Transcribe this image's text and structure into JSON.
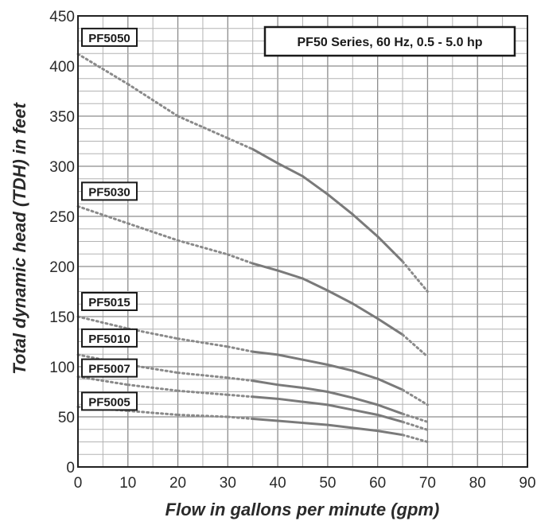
{
  "chart_data": {
    "type": "line",
    "title": "PF50 Series, 60 Hz, 0.5 - 5.0 hp",
    "xlabel": "Flow in gallons per minute (gpm)",
    "ylabel": "Total dynamic head (TDH) in feet",
    "xlim": [
      0,
      90
    ],
    "ylim": [
      0,
      450
    ],
    "xticks": [
      0,
      10,
      20,
      30,
      40,
      50,
      60,
      70,
      80,
      90
    ],
    "yticks": [
      0,
      50,
      100,
      150,
      200,
      250,
      300,
      350,
      400,
      450
    ],
    "grid": true,
    "legend": "top-right box",
    "line_color": "#7a7a7a",
    "series": [
      {
        "name": "PF5050",
        "points": [
          [
            0,
            412
          ],
          [
            10,
            382
          ],
          [
            20,
            350
          ],
          [
            30,
            328
          ],
          [
            35,
            317
          ],
          [
            40,
            303
          ],
          [
            45,
            290
          ],
          [
            50,
            272
          ],
          [
            55,
            252
          ],
          [
            60,
            230
          ],
          [
            65,
            205
          ],
          [
            70,
            175
          ]
        ]
      },
      {
        "name": "PF5030",
        "points": [
          [
            0,
            260
          ],
          [
            10,
            243
          ],
          [
            20,
            226
          ],
          [
            30,
            212
          ],
          [
            35,
            203
          ],
          [
            40,
            196
          ],
          [
            45,
            188
          ],
          [
            50,
            176
          ],
          [
            55,
            163
          ],
          [
            60,
            148
          ],
          [
            65,
            132
          ],
          [
            70,
            110
          ]
        ]
      },
      {
        "name": "PF5015",
        "points": [
          [
            0,
            150
          ],
          [
            10,
            138
          ],
          [
            20,
            128
          ],
          [
            30,
            120
          ],
          [
            35,
            115
          ],
          [
            40,
            112
          ],
          [
            45,
            107
          ],
          [
            50,
            102
          ],
          [
            55,
            96
          ],
          [
            60,
            88
          ],
          [
            65,
            77
          ],
          [
            70,
            62
          ]
        ]
      },
      {
        "name": "PF5010",
        "points": [
          [
            0,
            112
          ],
          [
            10,
            102
          ],
          [
            20,
            94
          ],
          [
            30,
            89
          ],
          [
            35,
            86
          ],
          [
            40,
            82
          ],
          [
            45,
            79
          ],
          [
            50,
            75
          ],
          [
            55,
            69
          ],
          [
            60,
            62
          ],
          [
            65,
            53
          ],
          [
            70,
            45
          ]
        ]
      },
      {
        "name": "PF5007",
        "points": [
          [
            0,
            90
          ],
          [
            10,
            82
          ],
          [
            20,
            76
          ],
          [
            30,
            72
          ],
          [
            35,
            70
          ],
          [
            40,
            68
          ],
          [
            45,
            65
          ],
          [
            50,
            62
          ],
          [
            55,
            57
          ],
          [
            60,
            52
          ],
          [
            65,
            45
          ],
          [
            70,
            37
          ]
        ]
      },
      {
        "name": "PF5005",
        "points": [
          [
            0,
            60
          ],
          [
            10,
            56
          ],
          [
            20,
            52
          ],
          [
            30,
            50
          ],
          [
            35,
            48
          ],
          [
            40,
            46
          ],
          [
            45,
            44
          ],
          [
            50,
            42
          ],
          [
            55,
            39
          ],
          [
            60,
            36
          ],
          [
            65,
            32
          ],
          [
            70,
            25
          ]
        ]
      }
    ]
  }
}
